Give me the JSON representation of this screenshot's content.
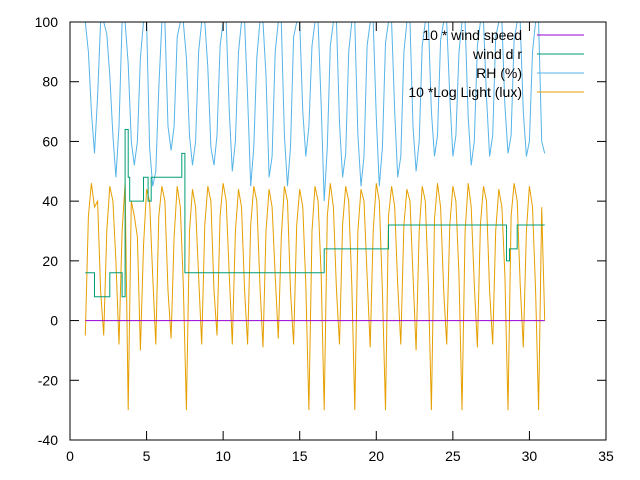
{
  "chart_data": {
    "type": "line",
    "title": "",
    "xlabel": "",
    "ylabel": "",
    "xlim": [
      0,
      35
    ],
    "ylim": [
      -40,
      100
    ],
    "x_ticks": [
      0,
      5,
      10,
      15,
      20,
      25,
      30,
      35
    ],
    "y_ticks": [
      -40,
      -20,
      0,
      20,
      40,
      60,
      80,
      100
    ],
    "x_tick_labels": [
      "0",
      "5",
      "10",
      "15",
      "20",
      "25",
      "30",
      "35"
    ],
    "y_tick_labels": [
      "-40",
      "-20",
      "0",
      "20",
      "40",
      "60",
      "80",
      "100"
    ],
    "grid": false,
    "legend_position": "top-right",
    "series": [
      {
        "name": "10 * wind speed",
        "color": "#9400d3",
        "x": [
          1.0,
          31.0
        ],
        "y": [
          0,
          0
        ]
      },
      {
        "name": "wind d r",
        "color": "#009e73",
        "step": true,
        "x": [
          1.0,
          1.6,
          1.8,
          2.6,
          3.4,
          3.6,
          3.8,
          3.9,
          4.1,
          4.8,
          5.1,
          5.3,
          6.3,
          7.3,
          7.5,
          10.0,
          16.5,
          16.6,
          20.8,
          21.2,
          28.5,
          28.7,
          29.2,
          29.6,
          31.0
        ],
        "y": [
          16,
          8,
          8,
          16,
          8,
          64,
          48,
          40,
          40,
          48,
          40,
          48,
          48,
          56,
          16,
          16,
          16,
          24,
          32,
          32,
          20,
          24,
          32,
          32,
          32
        ]
      },
      {
        "name": "RH (%)",
        "color": "#56b4e9",
        "x": [
          1.0,
          1.2,
          1.4,
          1.6,
          1.8,
          2.0,
          2.2,
          2.4,
          2.6,
          2.8,
          3.0,
          3.2,
          3.4,
          3.6,
          3.8,
          4.0,
          4.2,
          4.4,
          4.6,
          4.8,
          5.0,
          5.2,
          5.4,
          5.6,
          5.8,
          6.0,
          6.2,
          6.4,
          6.6,
          6.8,
          7.0,
          7.2,
          7.4,
          7.6,
          7.8,
          8.0,
          8.2,
          8.4,
          8.6,
          8.8,
          9.0,
          9.2,
          9.4,
          9.6,
          9.8,
          10.0,
          10.2,
          10.4,
          10.6,
          10.8,
          11.0,
          11.2,
          11.4,
          11.6,
          11.8,
          12.0,
          12.2,
          12.4,
          12.6,
          12.8,
          13.0,
          13.2,
          13.4,
          13.6,
          13.8,
          14.0,
          14.2,
          14.4,
          14.6,
          14.8,
          15.0,
          15.2,
          15.4,
          15.6,
          15.8,
          16.0,
          16.2,
          16.4,
          16.6,
          16.8,
          17.0,
          17.2,
          17.4,
          17.6,
          17.8,
          18.0,
          18.2,
          18.4,
          18.6,
          18.8,
          19.0,
          19.2,
          19.4,
          19.6,
          19.8,
          20.0,
          20.2,
          20.4,
          20.6,
          20.8,
          21.0,
          21.2,
          21.4,
          21.6,
          21.8,
          22.0,
          22.2,
          22.4,
          22.6,
          22.8,
          23.0,
          23.2,
          23.4,
          23.6,
          23.8,
          24.0,
          24.2,
          24.4,
          24.6,
          24.8,
          25.0,
          25.2,
          25.4,
          25.6,
          25.8,
          26.0,
          26.2,
          26.4,
          26.6,
          26.8,
          27.0,
          27.2,
          27.4,
          27.6,
          27.8,
          28.0,
          28.2,
          28.4,
          28.6,
          28.8,
          29.0,
          29.2,
          29.4,
          29.6,
          29.8,
          30.0,
          30.2,
          30.4,
          30.6,
          30.8,
          31.0
        ],
        "y": [
          100,
          90,
          70,
          56,
          75,
          100,
          100,
          96,
          82,
          62,
          48,
          65,
          100,
          100,
          86,
          60,
          52,
          60,
          88,
          100,
          100,
          58,
          45,
          50,
          78,
          100,
          100,
          65,
          57,
          65,
          95,
          100,
          100,
          88,
          62,
          52,
          60,
          90,
          100,
          100,
          85,
          58,
          52,
          62,
          92,
          100,
          100,
          70,
          50,
          60,
          90,
          100,
          100,
          75,
          45,
          58,
          88,
          100,
          100,
          82,
          48,
          55,
          90,
          100,
          100,
          62,
          45,
          58,
          95,
          100,
          100,
          70,
          55,
          65,
          92,
          100,
          100,
          72,
          40,
          58,
          92,
          100,
          100,
          66,
          48,
          56,
          90,
          100,
          100,
          62,
          45,
          55,
          92,
          100,
          100,
          68,
          45,
          58,
          93,
          100,
          100,
          70,
          48,
          55,
          90,
          100,
          100,
          65,
          50,
          60,
          92,
          100,
          100,
          70,
          55,
          62,
          94,
          100,
          100,
          75,
          55,
          62,
          90,
          100,
          100,
          68,
          52,
          60,
          92,
          100,
          100,
          75,
          55,
          62,
          95,
          100,
          100,
          72,
          56,
          62,
          94,
          100,
          100,
          70,
          55,
          60,
          90,
          100,
          100,
          60,
          56
        ]
      },
      {
        "name": "10 *Log Light (lux)",
        "color": "#e69f00",
        "x": [
          1.0,
          1.2,
          1.4,
          1.6,
          1.8,
          2.0,
          2.2,
          2.4,
          2.6,
          2.8,
          3.0,
          3.2,
          3.4,
          3.6,
          3.8,
          4.0,
          4.2,
          4.4,
          4.6,
          4.8,
          5.0,
          5.2,
          5.4,
          5.6,
          5.8,
          6.0,
          6.2,
          6.4,
          6.6,
          6.8,
          7.0,
          7.2,
          7.4,
          7.6,
          7.8,
          8.0,
          8.2,
          8.4,
          8.6,
          8.8,
          9.0,
          9.2,
          9.4,
          9.6,
          9.8,
          10.0,
          10.2,
          10.4,
          10.6,
          10.8,
          11.0,
          11.2,
          11.4,
          11.6,
          11.8,
          12.0,
          12.2,
          12.4,
          12.6,
          12.8,
          13.0,
          13.2,
          13.4,
          13.6,
          13.8,
          14.0,
          14.2,
          14.4,
          14.6,
          14.8,
          15.0,
          15.2,
          15.4,
          15.6,
          15.8,
          16.0,
          16.2,
          16.4,
          16.6,
          16.8,
          17.0,
          17.2,
          17.4,
          17.6,
          17.8,
          18.0,
          18.2,
          18.4,
          18.6,
          18.8,
          19.0,
          19.2,
          19.4,
          19.6,
          19.8,
          20.0,
          20.2,
          20.4,
          20.6,
          20.8,
          21.0,
          21.2,
          21.4,
          21.6,
          21.8,
          22.0,
          22.2,
          22.4,
          22.6,
          22.8,
          23.0,
          23.2,
          23.4,
          23.6,
          23.8,
          24.0,
          24.2,
          24.4,
          24.6,
          24.8,
          25.0,
          25.2,
          25.4,
          25.6,
          25.8,
          26.0,
          26.2,
          26.4,
          26.6,
          26.8,
          27.0,
          27.2,
          27.4,
          27.6,
          27.8,
          28.0,
          28.2,
          28.4,
          28.6,
          28.8,
          29.0,
          29.2,
          29.4,
          29.6,
          29.8,
          30.0,
          30.2,
          30.4,
          30.6,
          30.8,
          31.0
        ],
        "y": [
          -5,
          35,
          46,
          38,
          40,
          10,
          -5,
          30,
          45,
          40,
          20,
          -8,
          30,
          46,
          -30,
          40,
          35,
          28,
          -10,
          25,
          44,
          40,
          15,
          -8,
          35,
          45,
          40,
          10,
          -6,
          28,
          45,
          38,
          12,
          -30,
          30,
          44,
          38,
          15,
          -8,
          32,
          45,
          40,
          10,
          -5,
          35,
          46,
          40,
          15,
          -8,
          30,
          44,
          38,
          10,
          -8,
          32,
          45,
          40,
          12,
          -9,
          30,
          44,
          38,
          15,
          -6,
          28,
          45,
          40,
          10,
          -8,
          32,
          44,
          38,
          12,
          -30,
          30,
          45,
          40,
          15,
          -30,
          35,
          46,
          38,
          10,
          -8,
          32,
          45,
          40,
          12,
          -30,
          30,
          44,
          40,
          15,
          -9,
          30,
          46,
          40,
          10,
          -30,
          35,
          45,
          38,
          12,
          -8,
          32,
          44,
          40,
          15,
          -10,
          30,
          45,
          40,
          12,
          -30,
          34,
          46,
          38,
          10,
          -8,
          32,
          45,
          40,
          15,
          -30,
          30,
          46,
          38,
          12,
          -9,
          32,
          45,
          40,
          10,
          -8,
          30,
          44,
          38,
          15,
          -30,
          35,
          46,
          40,
          12,
          -9,
          30,
          45,
          38,
          10,
          -30,
          38,
          0
        ]
      }
    ]
  }
}
